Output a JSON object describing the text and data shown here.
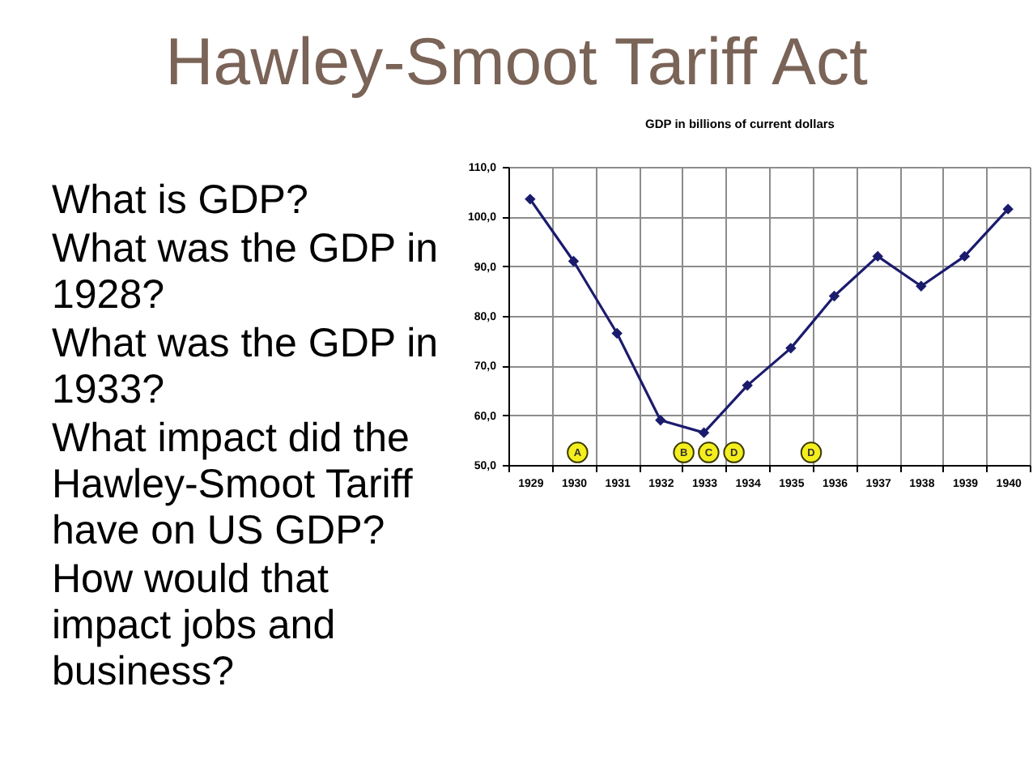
{
  "chart_data": {
    "type": "line",
    "title": "Hawley-Smoot Tariff Act",
    "subtitle": "GDP in billions of current dollars",
    "categories": [
      "1929",
      "1930",
      "1931",
      "1932",
      "1933",
      "1934",
      "1935",
      "1936",
      "1937",
      "1938",
      "1939",
      "1940"
    ],
    "series": [
      {
        "color": "#1b1b6e",
        "values": [
          103.5,
          91,
          76.5,
          59,
          56.5,
          66,
          73.5,
          84,
          92,
          86,
          92,
          101.5
        ]
      }
    ],
    "ylim": [
      50,
      110
    ],
    "yticks": [
      {
        "value": 50,
        "label": "50,0"
      },
      {
        "value": 60,
        "label": "60,0"
      },
      {
        "value": 70,
        "label": "70,0"
      },
      {
        "value": 80,
        "label": "80,0"
      },
      {
        "value": 90,
        "label": "90,0"
      },
      {
        "value": 100,
        "label": "100,0"
      },
      {
        "value": 110,
        "label": "110,0"
      }
    ],
    "grid": true,
    "marker": "diamond",
    "line_style": "solid",
    "annotations": [
      "What is GDP?",
      "What was the GDP in 1928?",
      "What was the GDP in 1933?",
      "What impact did the Hawley-Smoot Tariff have on US GDP?",
      "How would that impact jobs and business?",
      "A",
      "B",
      "C",
      "D",
      "D"
    ]
  }
}
